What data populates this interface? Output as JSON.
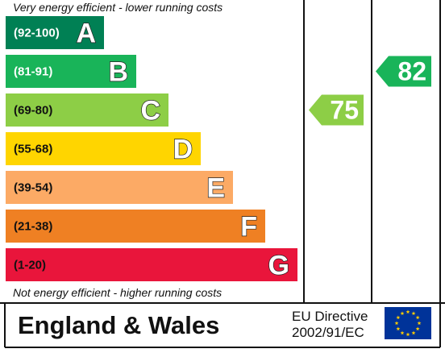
{
  "chart_data": {
    "type": "bar",
    "top_caption": "Very energy efficient - lower running costs",
    "bottom_caption": "Not energy efficient - higher running costs",
    "bands": [
      {
        "range": "(92-100)",
        "letter": "A",
        "color": "#008054",
        "range_color": "#ffffff"
      },
      {
        "range": "(81-91)",
        "letter": "B",
        "color": "#19b459",
        "range_color": "#ffffff"
      },
      {
        "range": "(69-80)",
        "letter": "C",
        "color": "#8dce46",
        "range_color": "#111111"
      },
      {
        "range": "(55-68)",
        "letter": "D",
        "color": "#ffd500",
        "range_color": "#111111"
      },
      {
        "range": "(39-54)",
        "letter": "E",
        "color": "#fcaa65",
        "range_color": "#111111"
      },
      {
        "range": "(21-38)",
        "letter": "F",
        "color": "#ef8023",
        "range_color": "#111111"
      },
      {
        "range": "(1-20)",
        "letter": "G",
        "color": "#e9153b",
        "range_color": "#111111"
      }
    ],
    "current_rating": {
      "value": 75,
      "band": "C",
      "color": "#8dce46"
    },
    "potential_rating": {
      "value": 82,
      "band": "B",
      "color": "#19b459"
    }
  },
  "footer": {
    "country": "England & Wales",
    "directive_line1": "EU Directive",
    "directive_line2": "2002/91/EC",
    "flag_color": "#003399",
    "star_color": "#ffcc00"
  }
}
